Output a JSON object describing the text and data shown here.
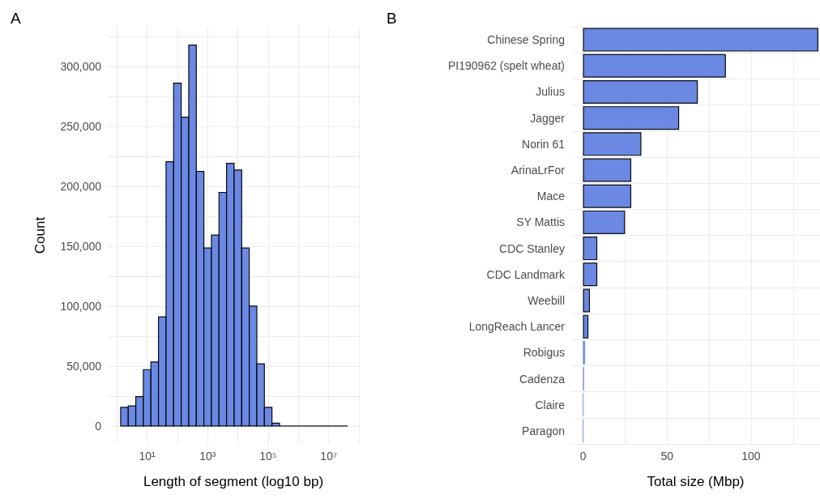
{
  "chart_data": [
    {
      "type": "histogram",
      "title": "A",
      "xlabel": "Length of segment (log10 bp)",
      "ylabel": "Count",
      "log": "x",
      "color": "#6382e2",
      "grid": true,
      "bins": [
        1.334,
        2.371,
        4.217,
        7.499,
        13.34,
        23.71,
        42.17,
        74.99,
        133.4,
        237.1,
        421.7,
        749.9,
        1334,
        2371,
        4217,
        7499,
        13340,
        23710,
        42170,
        74990,
        133400,
        237100,
        421700,
        749900,
        1334000,
        2371000,
        4217000,
        7499000,
        13340000,
        23710000,
        42170000
      ],
      "values": [
        15500,
        16700,
        24500,
        47000,
        53400,
        91000,
        220400,
        286000,
        257600,
        317700,
        212300,
        148400,
        159200,
        194800,
        219000,
        213500,
        148400,
        100000,
        51800,
        15500,
        2300,
        0,
        0,
        0,
        0,
        0,
        0,
        0,
        0,
        0
      ],
      "xlim": [
        0.5,
        100000000
      ],
      "xticks": [
        {
          "value": 1,
          "label": null
        },
        {
          "value": 10,
          "label": "10¹"
        },
        {
          "value": 100,
          "label": null
        },
        {
          "value": 1000,
          "label": "10³"
        },
        {
          "value": 10000,
          "label": null
        },
        {
          "value": 100000,
          "label": "10⁵"
        },
        {
          "value": 1000000,
          "label": null
        },
        {
          "value": 10000000,
          "label": "10⁷"
        },
        {
          "value": 100000000,
          "label": null
        }
      ],
      "ylim": [
        -15000,
        333000
      ],
      "yticks": [
        {
          "value": 0,
          "label": "0"
        },
        {
          "value": 25000,
          "label": null
        },
        {
          "value": 50000,
          "label": "50,000"
        },
        {
          "value": 75000,
          "label": null
        },
        {
          "value": 100000,
          "label": "100,000"
        },
        {
          "value": 125000,
          "label": null
        },
        {
          "value": 150000,
          "label": "150,000"
        },
        {
          "value": 175000,
          "label": null
        },
        {
          "value": 200000,
          "label": "200,000"
        },
        {
          "value": 225000,
          "label": null
        },
        {
          "value": 250000,
          "label": "250,000"
        },
        {
          "value": 275000,
          "label": null
        },
        {
          "value": 300000,
          "label": "300,000"
        },
        {
          "value": 325000,
          "label": null
        }
      ]
    },
    {
      "type": "bar",
      "orientation": "horizontal",
      "title": "B",
      "xlabel": "Total size (Mbp)",
      "color": "#6382e2",
      "grid": true,
      "categories": [
        "Chinese Spring",
        "PI190962 (spelt wheat)",
        "Julius",
        "Jagger",
        "Norin 61",
        "ArinaLrFor",
        "Mace",
        "SY Mattis",
        "CDC Stanley",
        "CDC Landmark",
        "Weebill",
        "LongReach Lancer",
        "Robigus",
        "Cadenza",
        "Claire",
        "Paragon"
      ],
      "values": [
        140,
        85,
        68.3,
        57.2,
        34.7,
        28.7,
        28.7,
        25,
        8.5,
        8.5,
        4.1,
        3.2,
        1.2,
        0.6,
        0.2,
        0.2
      ],
      "xlim": [
        -7,
        141
      ],
      "xticks": [
        0,
        {
          "value": 25,
          "label": null
        },
        50,
        {
          "value": 75,
          "label": null
        },
        100,
        {
          "value": 125,
          "label": null
        }
      ]
    }
  ]
}
